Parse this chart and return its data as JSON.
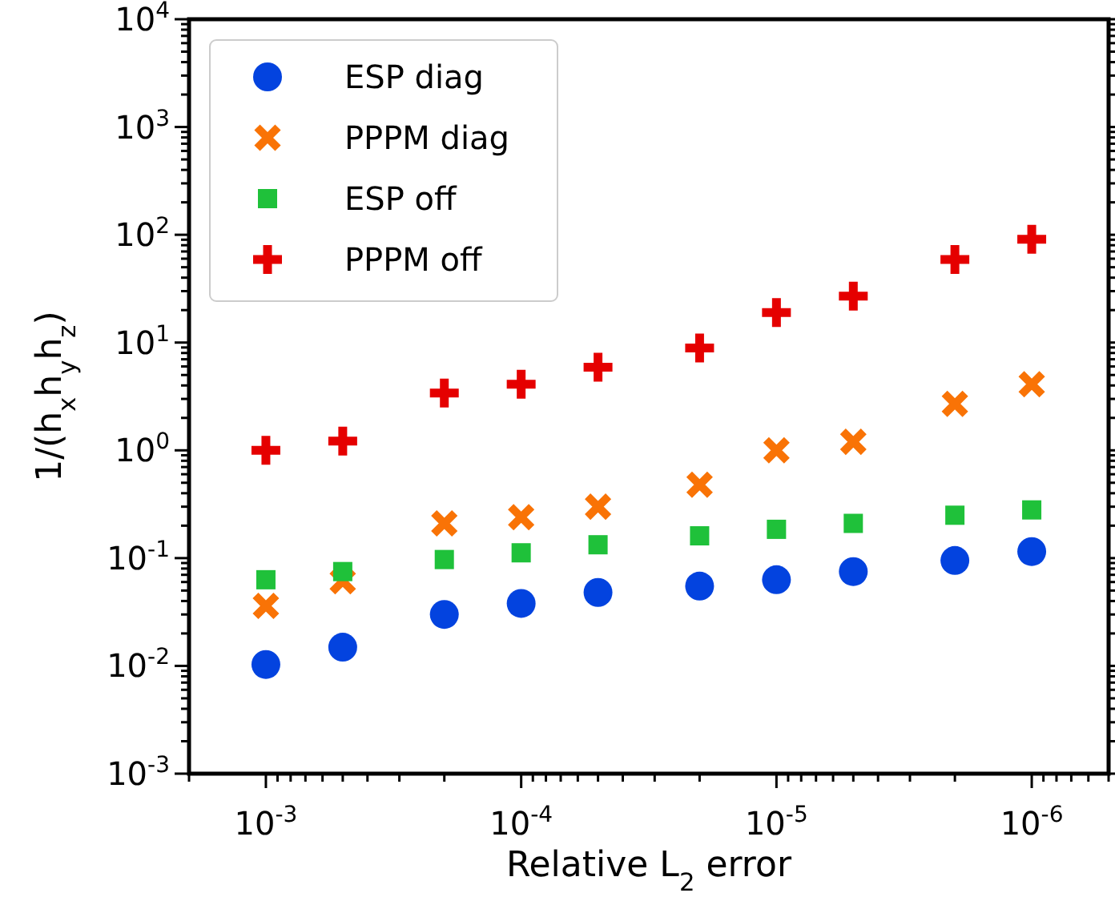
{
  "chart_data": {
    "type": "scatter",
    "xlabel": "Relative L$_{2}$ error",
    "ylabel": "1/(h$_{x}$h$_{y}$h$_{z}$)",
    "x": [
      0.001,
      0.0005,
      0.0002,
      0.0001,
      5e-05,
      2e-05,
      1e-05,
      5e-06,
      2e-06,
      1e-06
    ],
    "series": [
      {
        "name": "ESP diag",
        "color": "#0343df",
        "marker": "circle",
        "values": [
          0.0103,
          0.0149,
          0.03,
          0.038,
          0.048,
          0.055,
          0.063,
          0.075,
          0.095,
          0.115
        ]
      },
      {
        "name": "PPPM diag",
        "color": "#f97306",
        "marker": "x",
        "values": [
          0.036,
          0.061,
          0.21,
          0.24,
          0.3,
          0.48,
          1.0,
          1.2,
          2.7,
          4.1
        ]
      },
      {
        "name": "ESP off",
        "color": "#1fc13a",
        "marker": "square",
        "values": [
          0.063,
          0.075,
          0.097,
          0.112,
          0.133,
          0.161,
          0.185,
          0.21,
          0.25,
          0.28
        ]
      },
      {
        "name": "PPPM off",
        "color": "#e50000",
        "marker": "cross",
        "values": [
          1.0,
          1.22,
          3.4,
          4.1,
          5.9,
          8.9,
          19,
          27,
          59,
          91
        ]
      }
    ],
    "log": "xy",
    "legend": "top left",
    "grid": false,
    "xlim": [
      0.002,
      5e-07
    ],
    "xticks": [
      {
        "value": 0.001,
        "label": "10$^{-3}$"
      },
      {
        "value": 0.0001,
        "label": "10$^{-4}$"
      },
      {
        "value": 1e-05,
        "label": "10$^{-5}$"
      },
      {
        "value": 1e-06,
        "label": "10$^{-6}$"
      },
      {
        "value": 0.002,
        "label": null
      },
      {
        "value": 0.0009,
        "label": null
      },
      {
        "value": 0.0008,
        "label": null
      },
      {
        "value": 0.0007,
        "label": null
      },
      {
        "value": 0.0006,
        "label": null
      },
      {
        "value": 0.0005,
        "label": null
      },
      {
        "value": 0.0004,
        "label": null
      },
      {
        "value": 0.0003,
        "label": null
      },
      {
        "value": 0.0002,
        "label": null
      },
      {
        "value": 9e-05,
        "label": null
      },
      {
        "value": 8e-05,
        "label": null
      },
      {
        "value": 7e-05,
        "label": null
      },
      {
        "value": 6e-05,
        "label": null
      },
      {
        "value": 5e-05,
        "label": null
      },
      {
        "value": 4e-05,
        "label": null
      },
      {
        "value": 3e-05,
        "label": null
      },
      {
        "value": 2e-05,
        "label": null
      },
      {
        "value": 9e-06,
        "label": null
      },
      {
        "value": 8e-06,
        "label": null
      },
      {
        "value": 7e-06,
        "label": null
      },
      {
        "value": 6e-06,
        "label": null
      },
      {
        "value": 5e-06,
        "label": null
      },
      {
        "value": 4e-06,
        "label": null
      },
      {
        "value": 3e-06,
        "label": null
      },
      {
        "value": 2e-06,
        "label": null
      },
      {
        "value": 9e-07,
        "label": null
      },
      {
        "value": 8e-07,
        "label": null
      },
      {
        "value": 7e-07,
        "label": null
      },
      {
        "value": 6e-07,
        "label": null
      },
      {
        "value": 5e-07,
        "label": null
      }
    ],
    "ylim": [
      0.001,
      10000
    ],
    "yticks": [
      {
        "value": 0.001,
        "label": "10$^{-3}$"
      },
      {
        "value": 0.01,
        "label": "10$^{-2}$"
      },
      {
        "value": 0.1,
        "label": "10$^{-1}$"
      },
      {
        "value": 1,
        "label": "10$^{0}$"
      },
      {
        "value": 10,
        "label": "10$^{1}$"
      },
      {
        "value": 100,
        "label": "10$^{2}$"
      },
      {
        "value": 1000,
        "label": "10$^{3}$"
      },
      {
        "value": 10000,
        "label": "10$^{4}$"
      },
      {
        "value": 0.002,
        "label": null
      },
      {
        "value": 0.003,
        "label": null
      },
      {
        "value": 0.004,
        "label": null
      },
      {
        "value": 0.005,
        "label": null
      },
      {
        "value": 0.006,
        "label": null
      },
      {
        "value": 0.007,
        "label": null
      },
      {
        "value": 0.008,
        "label": null
      },
      {
        "value": 0.009,
        "label": null
      },
      {
        "value": 0.02,
        "label": null
      },
      {
        "value": 0.03,
        "label": null
      },
      {
        "value": 0.04,
        "label": null
      },
      {
        "value": 0.05,
        "label": null
      },
      {
        "value": 0.06,
        "label": null
      },
      {
        "value": 0.07,
        "label": null
      },
      {
        "value": 0.08,
        "label": null
      },
      {
        "value": 0.09,
        "label": null
      },
      {
        "value": 0.2,
        "label": null
      },
      {
        "value": 0.3,
        "label": null
      },
      {
        "value": 0.4,
        "label": null
      },
      {
        "value": 0.5,
        "label": null
      },
      {
        "value": 0.6,
        "label": null
      },
      {
        "value": 0.7,
        "label": null
      },
      {
        "value": 0.8,
        "label": null
      },
      {
        "value": 0.9,
        "label": null
      },
      {
        "value": 2,
        "label": null
      },
      {
        "value": 3,
        "label": null
      },
      {
        "value": 4,
        "label": null
      },
      {
        "value": 5,
        "label": null
      },
      {
        "value": 6,
        "label": null
      },
      {
        "value": 7,
        "label": null
      },
      {
        "value": 8,
        "label": null
      },
      {
        "value": 9,
        "label": null
      },
      {
        "value": 20,
        "label": null
      },
      {
        "value": 30,
        "label": null
      },
      {
        "value": 40,
        "label": null
      },
      {
        "value": 50,
        "label": null
      },
      {
        "value": 60,
        "label": null
      },
      {
        "value": 70,
        "label": null
      },
      {
        "value": 80,
        "label": null
      },
      {
        "value": 90,
        "label": null
      },
      {
        "value": 200,
        "label": null
      },
      {
        "value": 300,
        "label": null
      },
      {
        "value": 400,
        "label": null
      },
      {
        "value": 500,
        "label": null
      },
      {
        "value": 600,
        "label": null
      },
      {
        "value": 700,
        "label": null
      },
      {
        "value": 800,
        "label": null
      },
      {
        "value": 900,
        "label": null
      },
      {
        "value": 2000,
        "label": null
      },
      {
        "value": 3000,
        "label": null
      },
      {
        "value": 4000,
        "label": null
      },
      {
        "value": 5000,
        "label": null
      },
      {
        "value": 6000,
        "label": null
      },
      {
        "value": 7000,
        "label": null
      },
      {
        "value": 8000,
        "label": null
      },
      {
        "value": 9000,
        "label": null
      }
    ]
  }
}
